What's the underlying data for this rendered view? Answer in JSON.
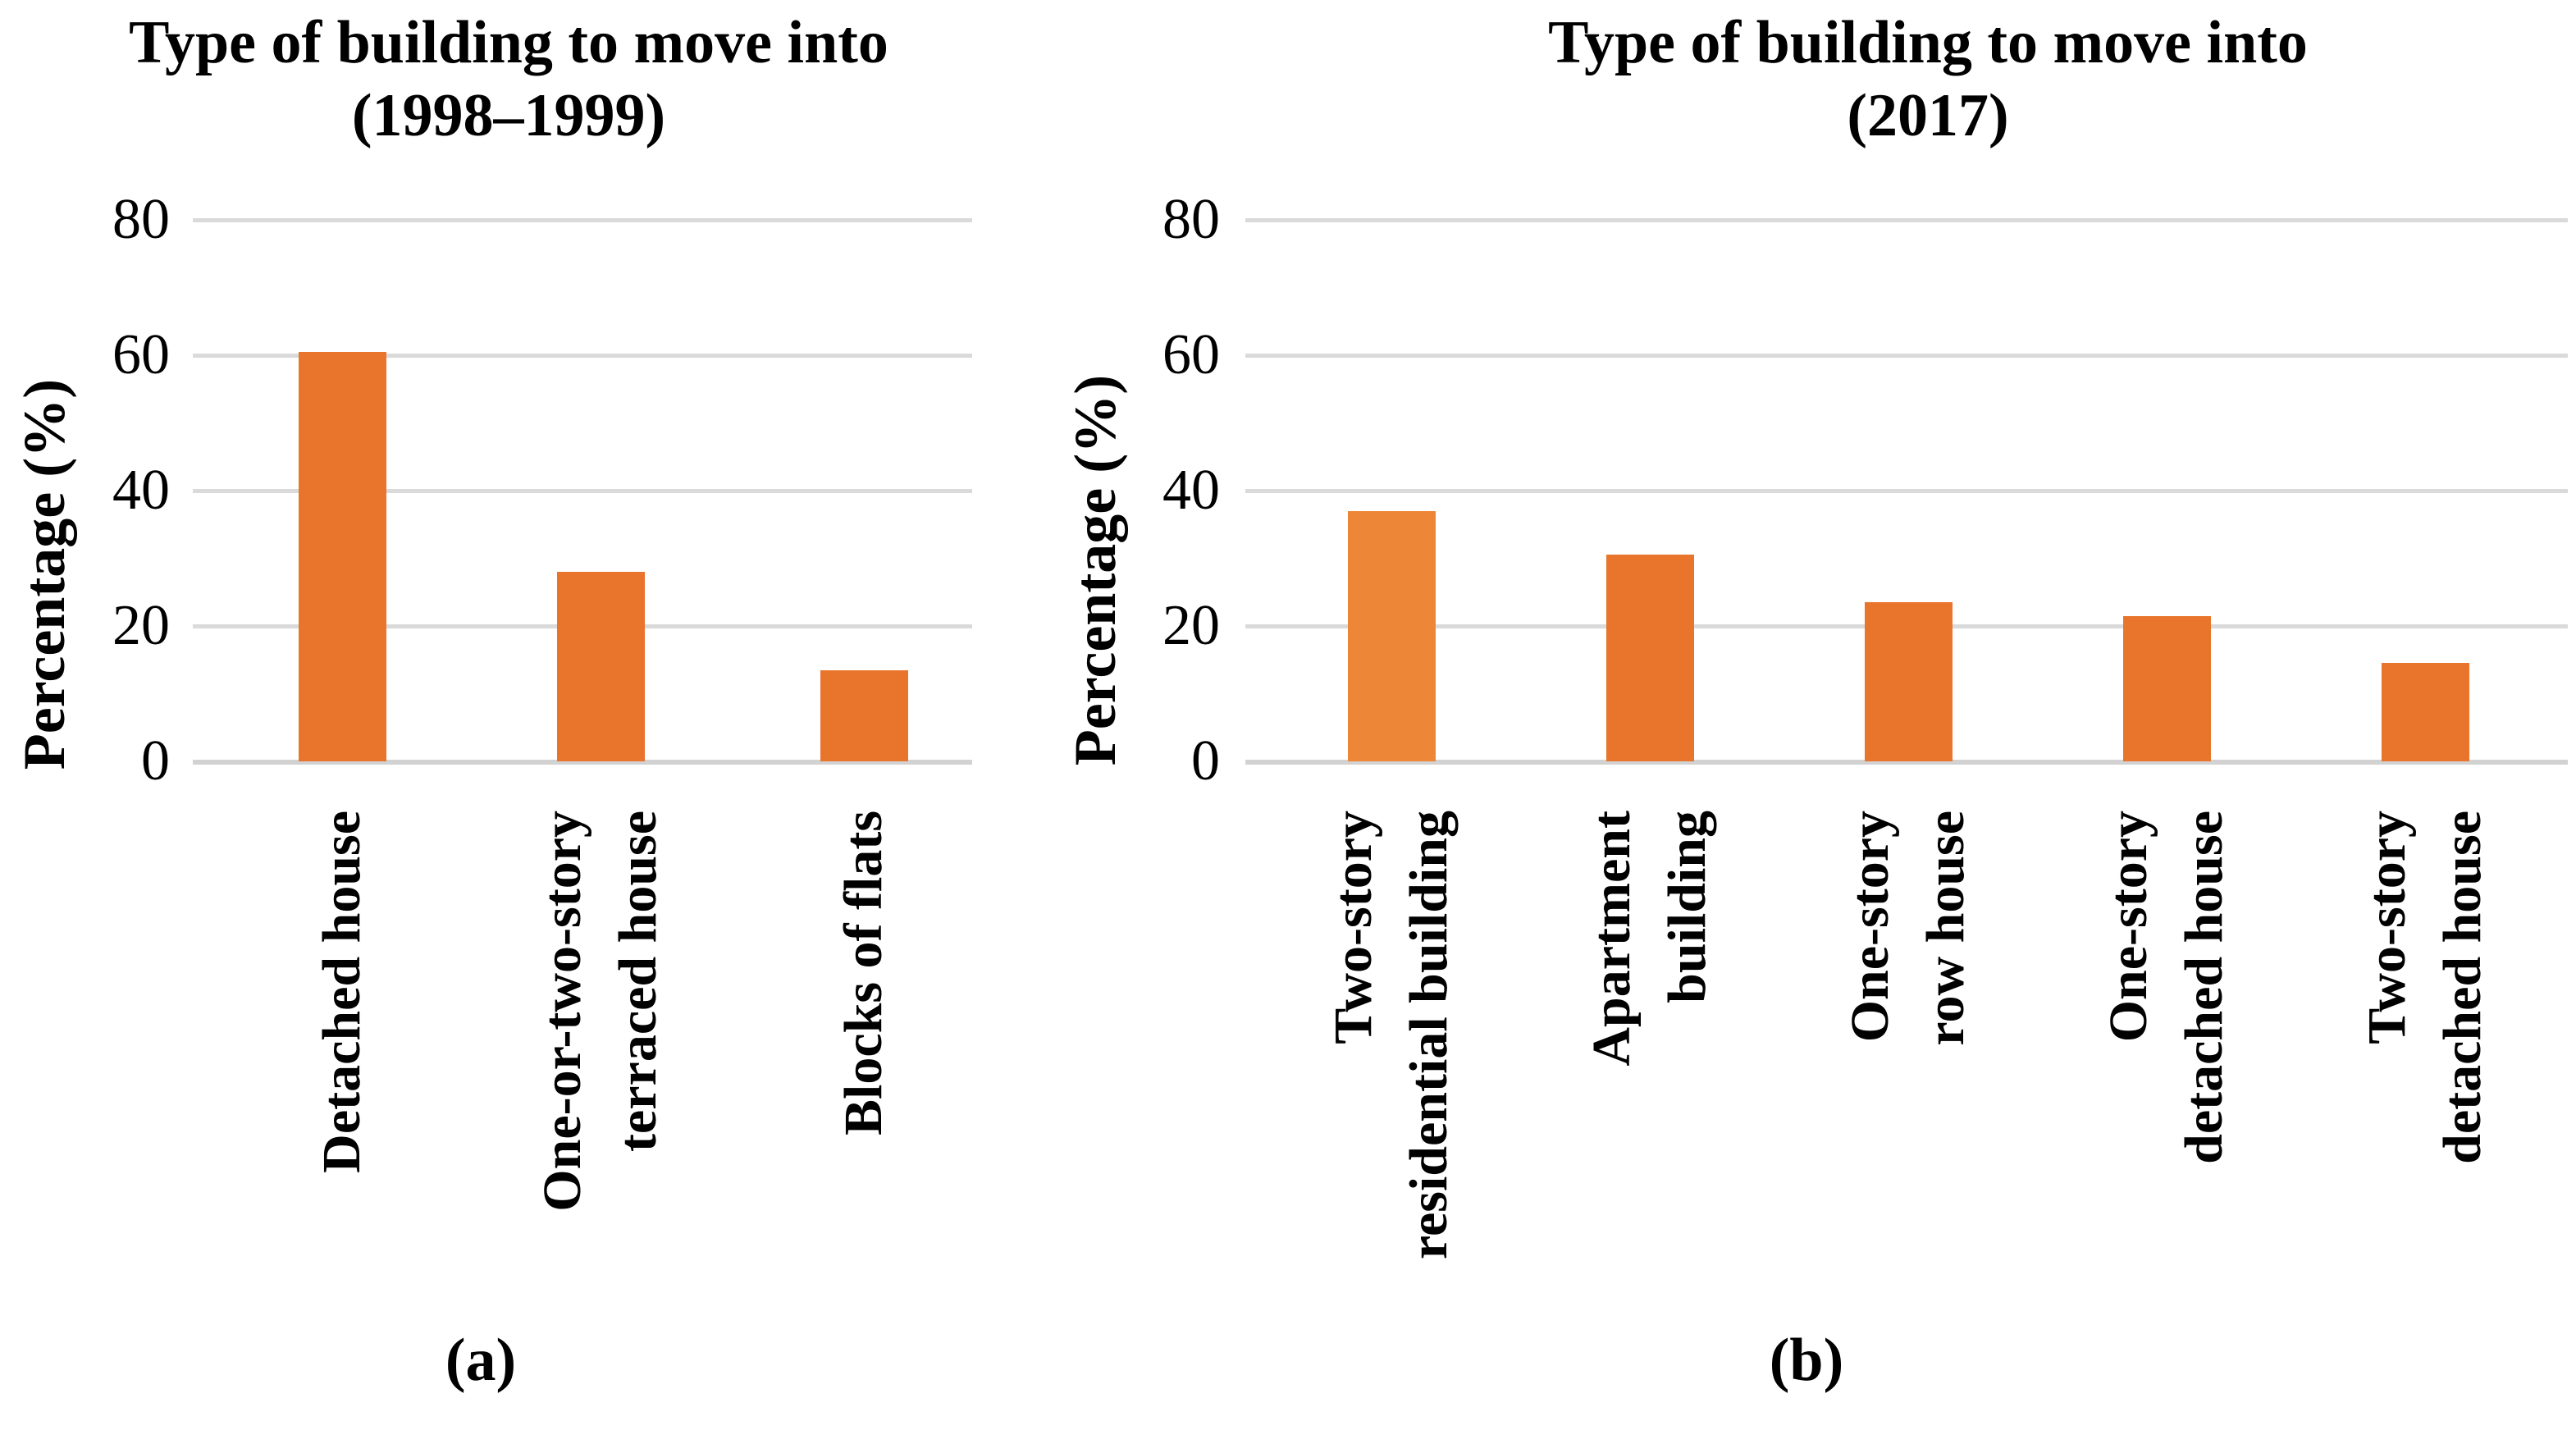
{
  "figure": {
    "background": "#ffffff"
  },
  "colors": {
    "gridline": "#DADADA",
    "axis_baseline": "#D2D2D2",
    "bar_orange": "#E8752B",
    "bar_orange_light": "#EE8637",
    "text": "#000000"
  },
  "charts": [
    {
      "title": {
        "line1": "Type of building to move into",
        "line2": "(1998–1999)"
      },
      "ylabel": "Percentage (%)",
      "yticks": [
        "80",
        "60",
        "40",
        "20",
        "0"
      ],
      "caption": "(a)",
      "categories": [
        {
          "lines": [
            "Detached house"
          ],
          "value": 60.5
        },
        {
          "lines": [
            "One-or-two-story",
            "terraced house"
          ],
          "value": 28
        },
        {
          "lines": [
            "Blocks of flats"
          ],
          "value": 13.5
        }
      ]
    },
    {
      "title": {
        "line1": "Type of building to move into",
        "line2": "(2017)"
      },
      "ylabel": "Percentage (%)",
      "yticks": [
        "80",
        "60",
        "40",
        "20",
        "0"
      ],
      "caption": "(b)",
      "categories": [
        {
          "lines": [
            "Two-story",
            "residential building"
          ],
          "value": 37,
          "color": "#EE8637"
        },
        {
          "lines": [
            "Apartment",
            "building"
          ],
          "value": 30.5
        },
        {
          "lines": [
            "One-story",
            "row house"
          ],
          "value": 23.5
        },
        {
          "lines": [
            "One-story",
            "detached house"
          ],
          "value": 21.5
        },
        {
          "lines": [
            "Two-story",
            "detached house"
          ],
          "value": 14.5
        }
      ]
    }
  ],
  "chart_data": [
    {
      "type": "bar",
      "title": "Type of building to move into (1998–1999)",
      "categories": [
        "Detached house",
        "One-or-two-story terraced house",
        "Blocks of flats"
      ],
      "values": [
        60.5,
        28,
        13.5
      ],
      "xlabel": "",
      "ylabel": "Percentage (%)",
      "ylim": [
        0,
        80
      ],
      "yticks": [
        0,
        20,
        40,
        60,
        80
      ],
      "grid": true,
      "legend": false,
      "bar_color": "#E8752B",
      "panel_label": "(a)",
      "category_label_rotation_deg": 90
    },
    {
      "type": "bar",
      "title": "Type of building to move into (2017)",
      "categories": [
        "Two-story residential building",
        "Apartment building",
        "One-story row house",
        "One-story detached house",
        "Two-story detached house"
      ],
      "values": [
        37,
        30.5,
        23.5,
        21.5,
        14.5
      ],
      "xlabel": "",
      "ylabel": "Percentage (%)",
      "ylim": [
        0,
        80
      ],
      "yticks": [
        0,
        20,
        40,
        60,
        80
      ],
      "grid": true,
      "legend": false,
      "bar_color": "#E8752B",
      "bar_colors": [
        "#EE8637",
        "#E8752B",
        "#E8752B",
        "#E8752B",
        "#E8752B"
      ],
      "panel_label": "(b)",
      "category_label_rotation_deg": 90
    }
  ]
}
